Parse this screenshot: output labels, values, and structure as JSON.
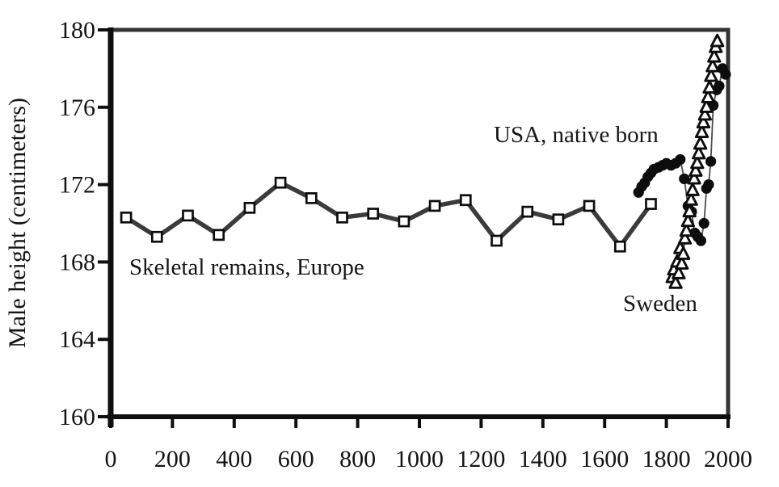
{
  "chart_data": {
    "type": "line",
    "title": "",
    "xlabel": "",
    "ylabel": "Male height (centimeters)",
    "xlim": [
      0,
      2000
    ],
    "ylim": [
      160,
      180
    ],
    "x_ticks": [
      0,
      200,
      400,
      600,
      800,
      1000,
      1200,
      1400,
      1600,
      1800,
      2000
    ],
    "y_ticks": [
      160,
      164,
      168,
      172,
      176,
      180
    ],
    "grid": false,
    "legend_position": "none (series labeled by inline annotations)",
    "series": [
      {
        "id": "skeletal",
        "name": "Skeletal remains, Europe",
        "marker": "open-square",
        "line_style": "thick",
        "points": [
          [
            50,
            170.3
          ],
          [
            150,
            169.3
          ],
          [
            250,
            170.4
          ],
          [
            350,
            169.4
          ],
          [
            450,
            170.8
          ],
          [
            550,
            172.1
          ],
          [
            650,
            171.3
          ],
          [
            750,
            170.3
          ],
          [
            850,
            170.5
          ],
          [
            950,
            170.1
          ],
          [
            1050,
            170.9
          ],
          [
            1150,
            171.2
          ],
          [
            1250,
            169.1
          ],
          [
            1350,
            170.6
          ],
          [
            1450,
            170.2
          ],
          [
            1550,
            170.9
          ],
          [
            1650,
            168.8
          ],
          [
            1750,
            171.0
          ]
        ]
      },
      {
        "id": "usa",
        "name": "USA, native born",
        "marker": "filled-circle",
        "line_style": "thin",
        "points": [
          [
            1710,
            171.6
          ],
          [
            1720,
            171.9
          ],
          [
            1730,
            172.1
          ],
          [
            1740,
            172.4
          ],
          [
            1750,
            172.6
          ],
          [
            1760,
            172.8
          ],
          [
            1775,
            172.9
          ],
          [
            1788,
            173.0
          ],
          [
            1800,
            173.1
          ],
          [
            1815,
            173.0
          ],
          [
            1830,
            173.1
          ],
          [
            1845,
            173.3
          ],
          [
            1858,
            172.3
          ],
          [
            1870,
            170.9
          ],
          [
            1882,
            170.6
          ],
          [
            1892,
            169.5
          ],
          [
            1902,
            169.3
          ],
          [
            1912,
            169.1
          ],
          [
            1922,
            170.0
          ],
          [
            1930,
            171.8
          ],
          [
            1937,
            172.0
          ],
          [
            1944,
            173.2
          ],
          [
            1952,
            176.1
          ],
          [
            1963,
            176.9
          ],
          [
            1971,
            177.1
          ],
          [
            1982,
            178.0
          ],
          [
            1992,
            177.7
          ]
        ]
      },
      {
        "id": "sweden",
        "name": "Sweden",
        "marker": "open-triangle",
        "line_style": "thin",
        "points": [
          [
            1820,
            167.2
          ],
          [
            1825,
            167.6
          ],
          [
            1830,
            166.9
          ],
          [
            1835,
            168.0
          ],
          [
            1840,
            167.4
          ],
          [
            1845,
            168.7
          ],
          [
            1850,
            167.9
          ],
          [
            1855,
            168.4
          ],
          [
            1860,
            169.2
          ],
          [
            1865,
            169.6
          ],
          [
            1870,
            170.1
          ],
          [
            1875,
            170.6
          ],
          [
            1880,
            171.2
          ],
          [
            1885,
            171.7
          ],
          [
            1890,
            172.3
          ],
          [
            1895,
            172.7
          ],
          [
            1900,
            173.1
          ],
          [
            1905,
            173.6
          ],
          [
            1910,
            174.1
          ],
          [
            1915,
            174.7
          ],
          [
            1920,
            175.2
          ],
          [
            1925,
            175.6
          ],
          [
            1930,
            176.0
          ],
          [
            1935,
            176.5
          ],
          [
            1940,
            177.0
          ],
          [
            1945,
            177.6
          ],
          [
            1950,
            178.1
          ],
          [
            1955,
            178.6
          ],
          [
            1960,
            179.1
          ],
          [
            1965,
            179.4
          ]
        ]
      }
    ],
    "annotations": [
      {
        "text": "Skeletal remains, Europe",
        "x": 60,
        "y": 167.3,
        "anchor": "start"
      },
      {
        "text": "USA, native born",
        "x": 1243,
        "y": 174.2,
        "anchor": "start"
      },
      {
        "text": "Sweden",
        "x": 1660,
        "y": 165.5,
        "anchor": "start"
      }
    ]
  },
  "colors": {
    "background": "#ffffff",
    "axis": "#0f0f0f",
    "frame": "#333333",
    "tick": "#0f0f0f",
    "text": "#141414",
    "skeletal_line": "#3b3b3b",
    "thin_line": "#4d4d4d",
    "marker_stroke": "#0d0d0d",
    "marker_open_fill": "#ffffff",
    "marker_filled_fill": "#0d0d0d"
  }
}
